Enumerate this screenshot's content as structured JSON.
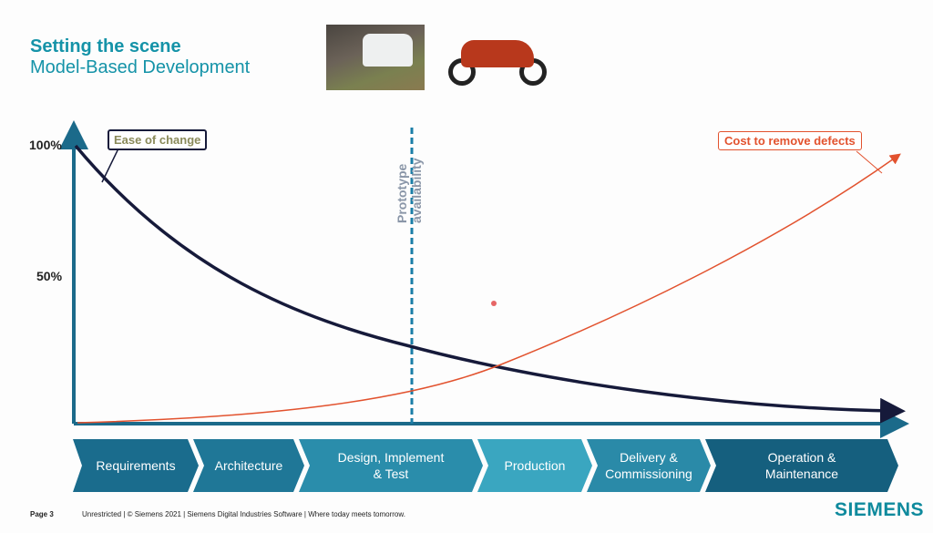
{
  "header": {
    "title": "Setting the scene",
    "subtitle": "Model-Based Development"
  },
  "chart": {
    "y_ticks": [
      "100%",
      "50%"
    ],
    "ease_label": "Ease of change",
    "cost_label": "Cost to remove defects",
    "prototype_label_1": "Prototype",
    "prototype_label_2": "availability",
    "colors": {
      "ease": "#161a3a",
      "cost": "#e2522e",
      "prototype": "#1b7ea8"
    }
  },
  "phases": [
    {
      "label": "Requirements",
      "color": "#1a6c8d"
    },
    {
      "label": "Architecture",
      "color": "#1f7797"
    },
    {
      "label": "Design, Implement & Test",
      "color": "#2a8dab"
    },
    {
      "label": "Production",
      "color": "#3aa6c0"
    },
    {
      "label": "Delivery & Commissioning",
      "color": "#2a8aa8"
    },
    {
      "label": "Operation & Maintenance",
      "color": "#155f7e"
    }
  ],
  "footer": {
    "page": "Page 3",
    "text": "Unrestricted | © Siemens 2021 | Siemens Digital Industries Software | Where today meets tomorrow.",
    "logo": "SIEMENS"
  }
}
